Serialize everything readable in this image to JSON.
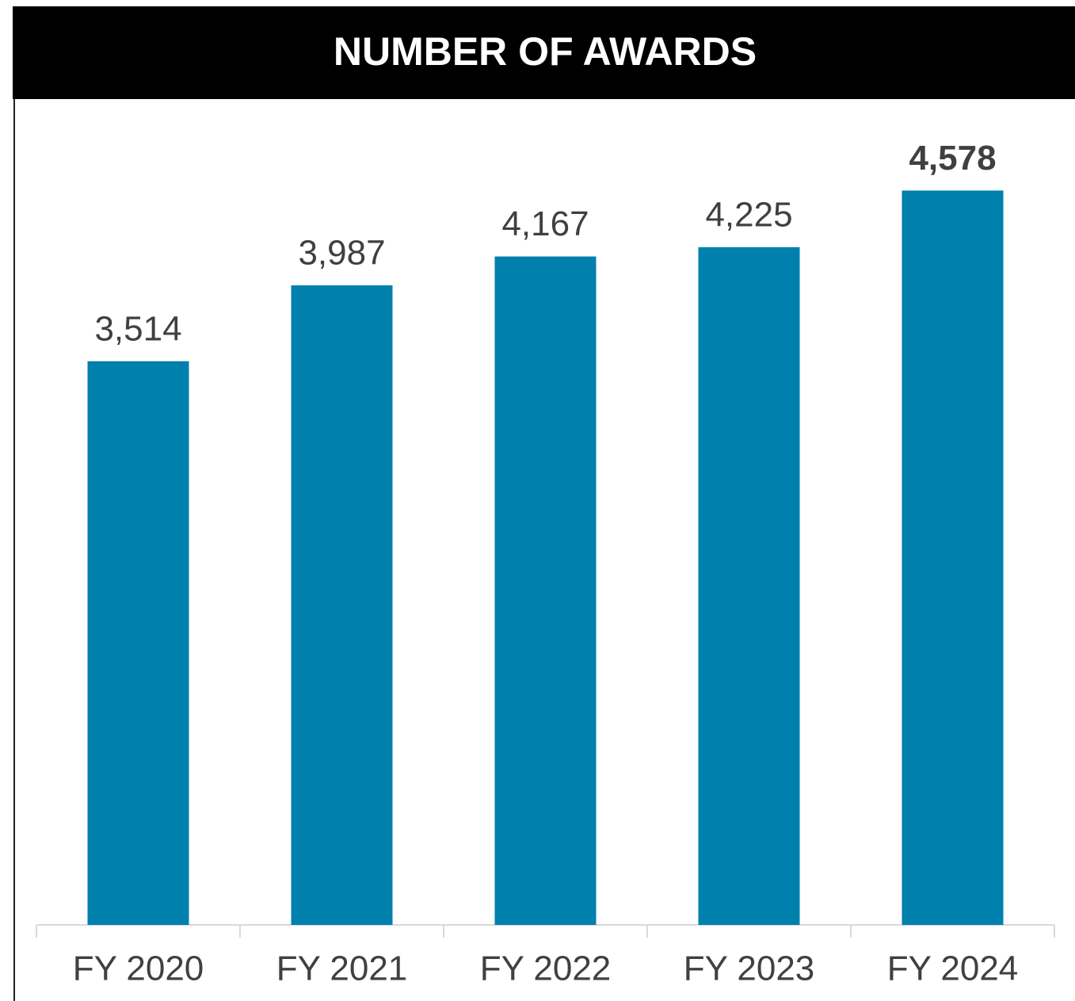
{
  "chart_data": {
    "type": "bar",
    "title": "NUMBER OF AWARDS",
    "categories": [
      "FY 2020",
      "FY 2021",
      "FY 2022",
      "FY 2023",
      "FY 2024"
    ],
    "values": [
      3514,
      3987,
      4167,
      4225,
      4578
    ],
    "value_labels": [
      "3,514",
      "3,987",
      "4,167",
      "4,225",
      "4,578"
    ],
    "value_label_bold": [
      false,
      false,
      false,
      false,
      true
    ],
    "color": "#0080ad",
    "ylim": [
      0,
      5000
    ]
  }
}
